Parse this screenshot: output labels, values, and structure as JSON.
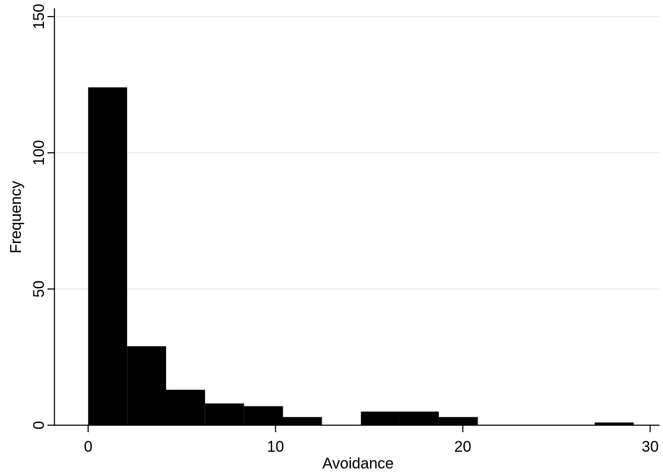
{
  "chart_data": {
    "type": "bar",
    "title": "",
    "xlabel": "Avoidance",
    "ylabel": "Frequency",
    "xlim": [
      -1.8,
      30.5
    ],
    "ylim": [
      0,
      153
    ],
    "xticks": [
      0,
      10,
      20,
      30
    ],
    "yticks": [
      0,
      50,
      100,
      150
    ],
    "x_tick_labels": [
      "0",
      "10",
      "20",
      "30"
    ],
    "y_tick_labels": [
      "0",
      "50",
      "100",
      "150"
    ],
    "grid": "horizontal",
    "bin_width": 2.08,
    "bins": [
      {
        "start": 0.0,
        "end": 2.08,
        "frequency": 124
      },
      {
        "start": 2.08,
        "end": 4.16,
        "frequency": 29
      },
      {
        "start": 4.16,
        "end": 6.24,
        "frequency": 13
      },
      {
        "start": 6.24,
        "end": 8.32,
        "frequency": 8
      },
      {
        "start": 8.32,
        "end": 10.4,
        "frequency": 7
      },
      {
        "start": 10.4,
        "end": 12.48,
        "frequency": 3
      },
      {
        "start": 12.48,
        "end": 14.56,
        "frequency": 0
      },
      {
        "start": 14.56,
        "end": 16.64,
        "frequency": 5
      },
      {
        "start": 16.64,
        "end": 18.72,
        "frequency": 5
      },
      {
        "start": 18.72,
        "end": 20.8,
        "frequency": 3
      },
      {
        "start": 20.8,
        "end": 22.88,
        "frequency": 0
      },
      {
        "start": 22.88,
        "end": 24.96,
        "frequency": 0
      },
      {
        "start": 24.96,
        "end": 27.04,
        "frequency": 0
      },
      {
        "start": 27.04,
        "end": 29.12,
        "frequency": 1
      }
    ],
    "colors": {
      "bar": "#000000",
      "grid": "#e3ebed",
      "axis": "#000000"
    }
  }
}
